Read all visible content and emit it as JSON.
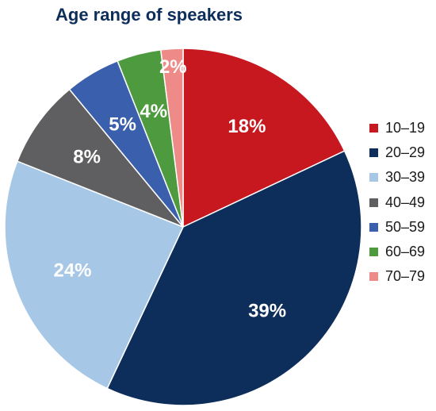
{
  "chart_data": {
    "type": "pie",
    "title": "Age range of speakers",
    "categories": [
      "10–19",
      "20–29",
      "30–39",
      "40–49",
      "50–59",
      "60–69",
      "70–79"
    ],
    "values": [
      18,
      39,
      24,
      8,
      5,
      4,
      2
    ],
    "labels": [
      "18%",
      "39%",
      "24%",
      "8%",
      "5%",
      "4%",
      "2%"
    ],
    "colors": [
      "#c8181f",
      "#0d2d5a",
      "#a7c7e7",
      "#5f5f61",
      "#3a5fad",
      "#4e9a3f",
      "#ee8a87"
    ],
    "legend_position": "right"
  }
}
